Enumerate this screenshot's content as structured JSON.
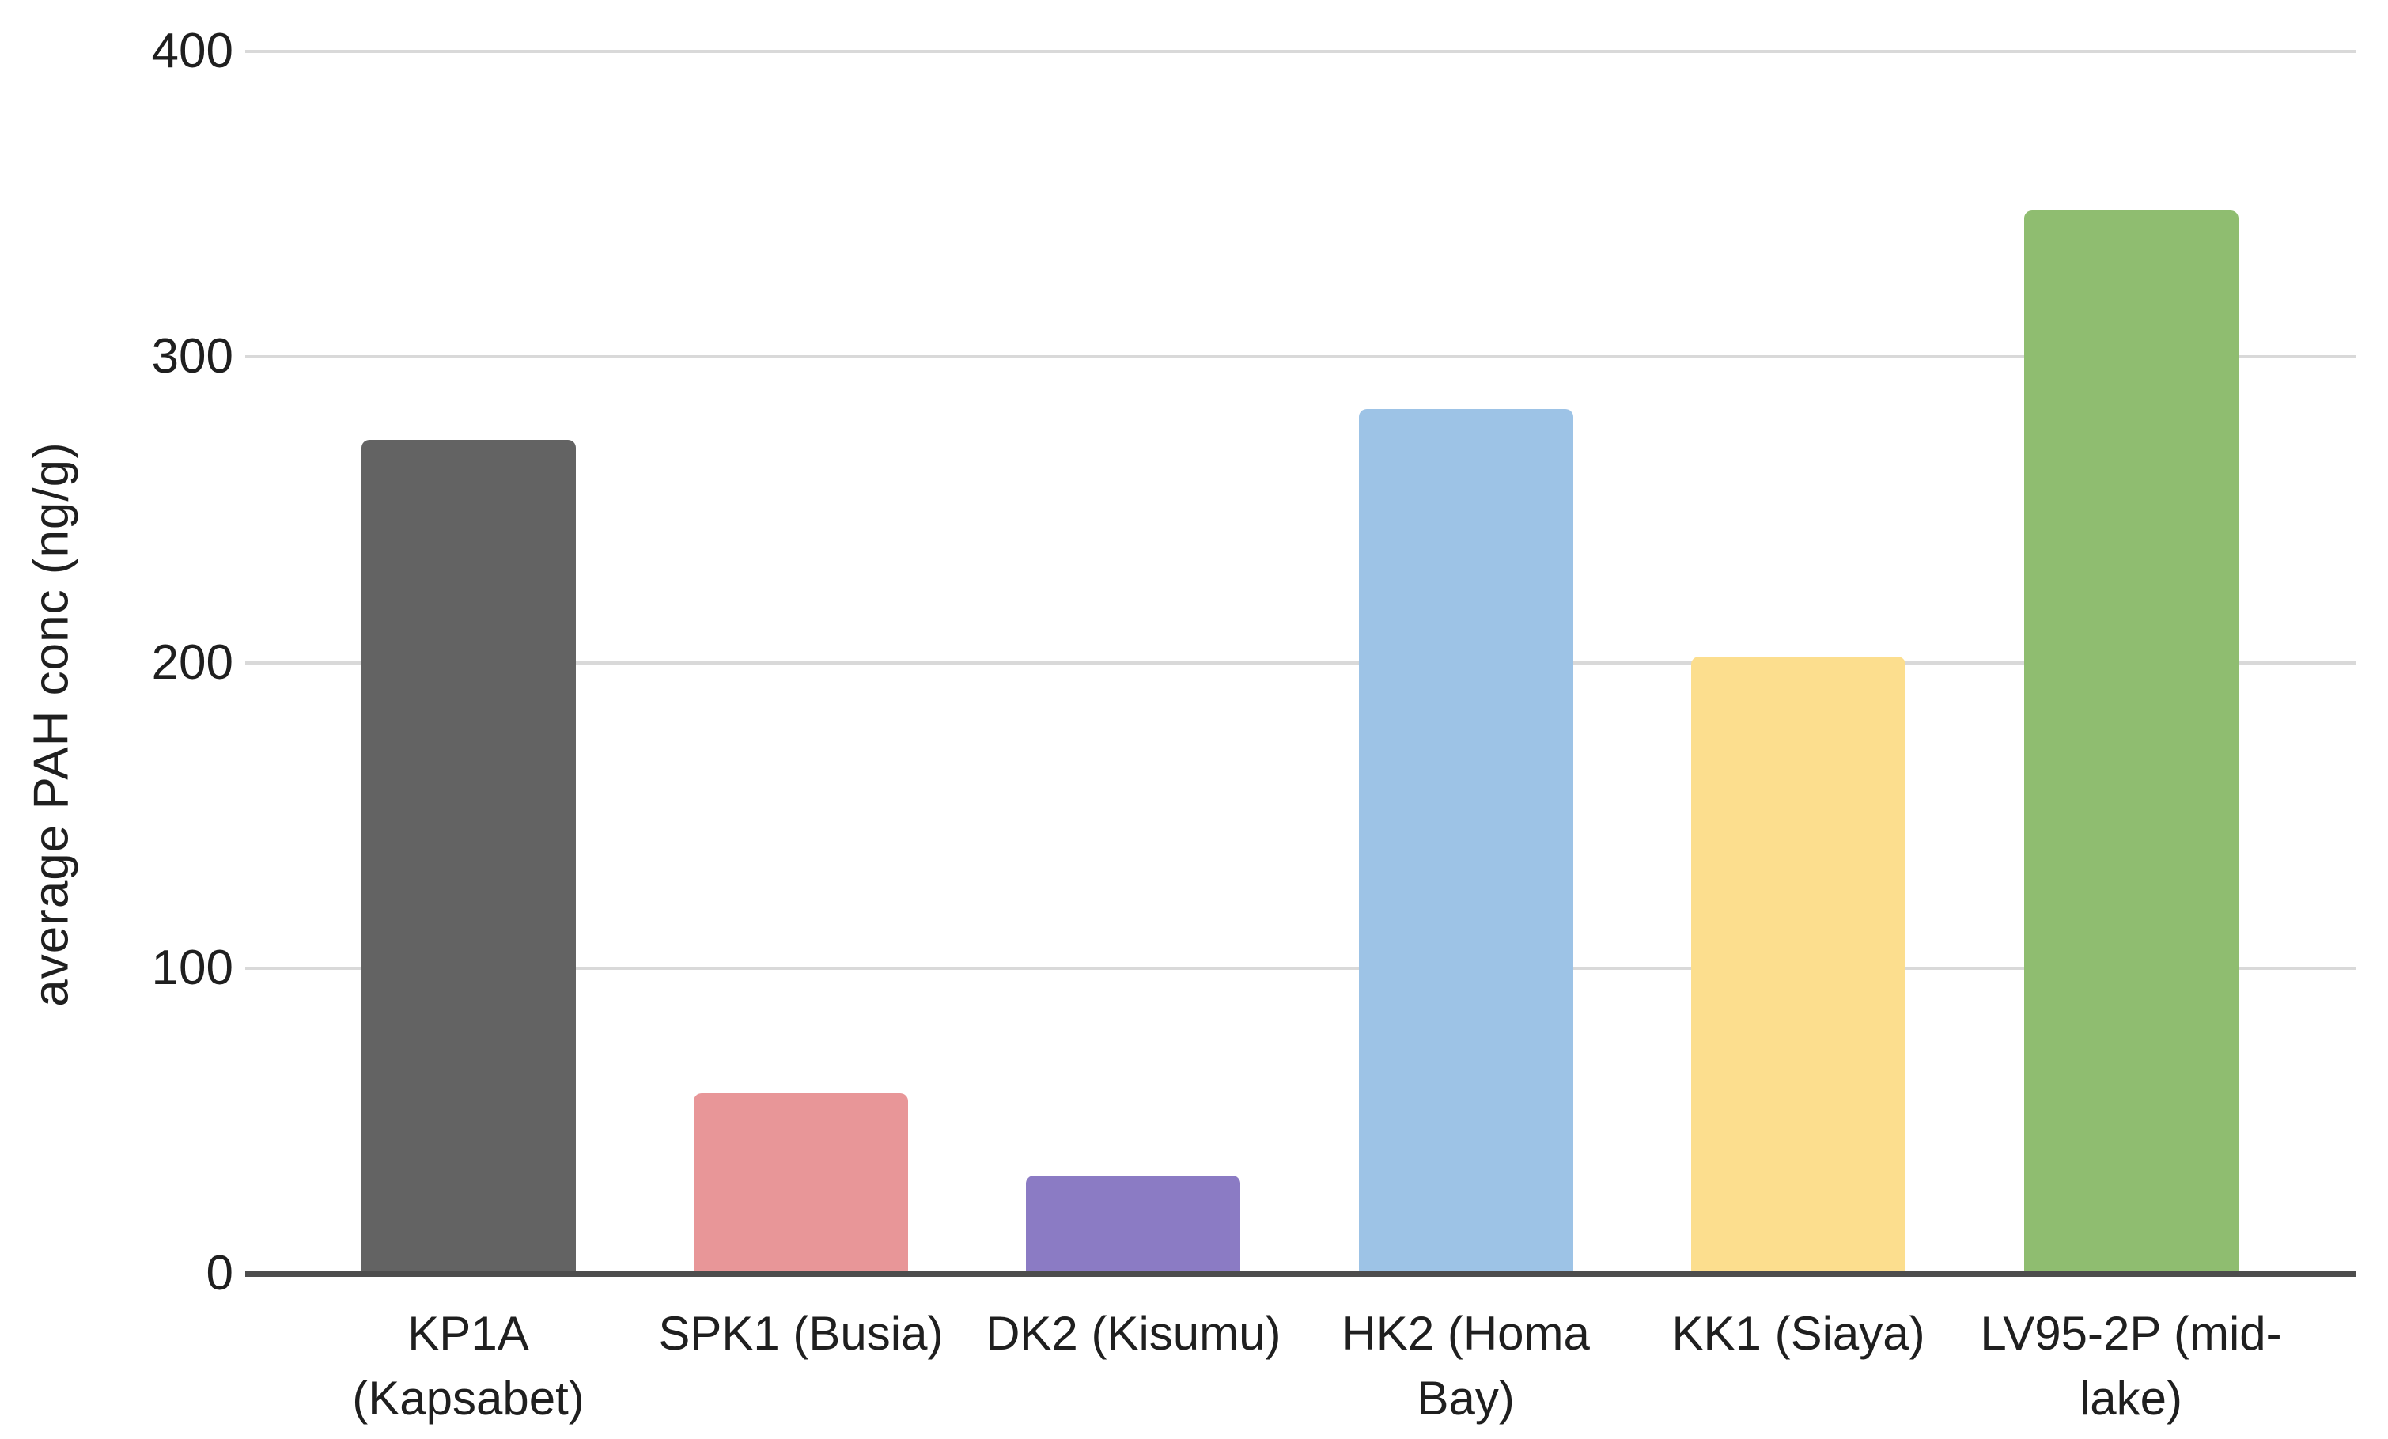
{
  "chart_data": {
    "type": "bar",
    "title": "",
    "ylabel": "average PAH conc (ng/g)",
    "xlabel": "",
    "categories": [
      "KP1A (Kapsabet)",
      "SPK1 (Busia)",
      "DK2 (Kisumu)",
      "HK2 (Homa Bay)",
      "KK1 (Siaya)",
      "LV95-2P (mid-lake)"
    ],
    "values": [
      273,
      59,
      32,
      283,
      202,
      348
    ],
    "bar_colors": [
      "#636363",
      "#E89698",
      "#8B7BC4",
      "#9DC3E6",
      "#FCDE8E",
      "#8FBD70"
    ],
    "ylim": [
      0,
      400
    ],
    "yticks": [
      0,
      100,
      200,
      300,
      400
    ],
    "grid": "horizontal",
    "legend": "none",
    "background": "#FFFFFF",
    "axis_color": "#4D4D4D",
    "gridline_color": "#D9D9D9",
    "text_color": "#1F1F1F"
  }
}
